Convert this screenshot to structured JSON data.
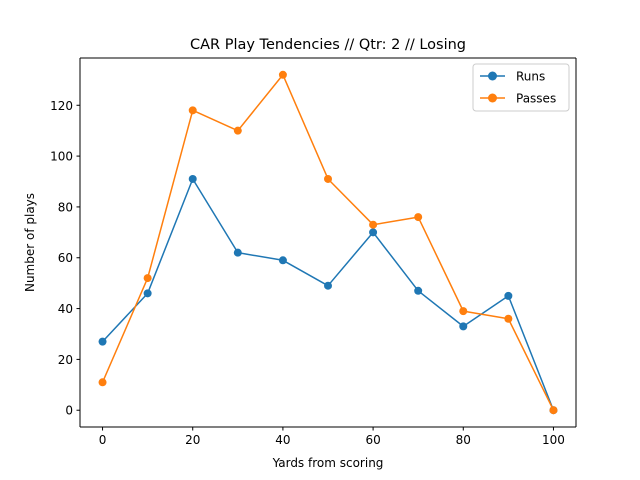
{
  "chart_data": {
    "type": "line",
    "title": "CAR Play Tendencies // Qtr: 2 // Losing",
    "xlabel": "Yards from scoring",
    "ylabel": "Number of plays",
    "xlim": [
      -5,
      105
    ],
    "ylim": [
      -6.6,
      138.6
    ],
    "xticks": [
      0,
      20,
      40,
      60,
      80,
      100
    ],
    "yticks": [
      0,
      20,
      40,
      60,
      80,
      100,
      120
    ],
    "grid": false,
    "legend_position": "top-right",
    "x": [
      0,
      10,
      20,
      30,
      40,
      50,
      60,
      70,
      80,
      90,
      100
    ],
    "series": [
      {
        "name": "Runs",
        "color": "#1f77b4",
        "marker": "circle",
        "values": [
          27,
          46,
          91,
          62,
          59,
          49,
          70,
          47,
          33,
          45,
          0
        ]
      },
      {
        "name": "Passes",
        "color": "#ff7f0e",
        "marker": "circle",
        "values": [
          11,
          52,
          118,
          110,
          132,
          91,
          73,
          76,
          39,
          36,
          0
        ]
      }
    ]
  }
}
